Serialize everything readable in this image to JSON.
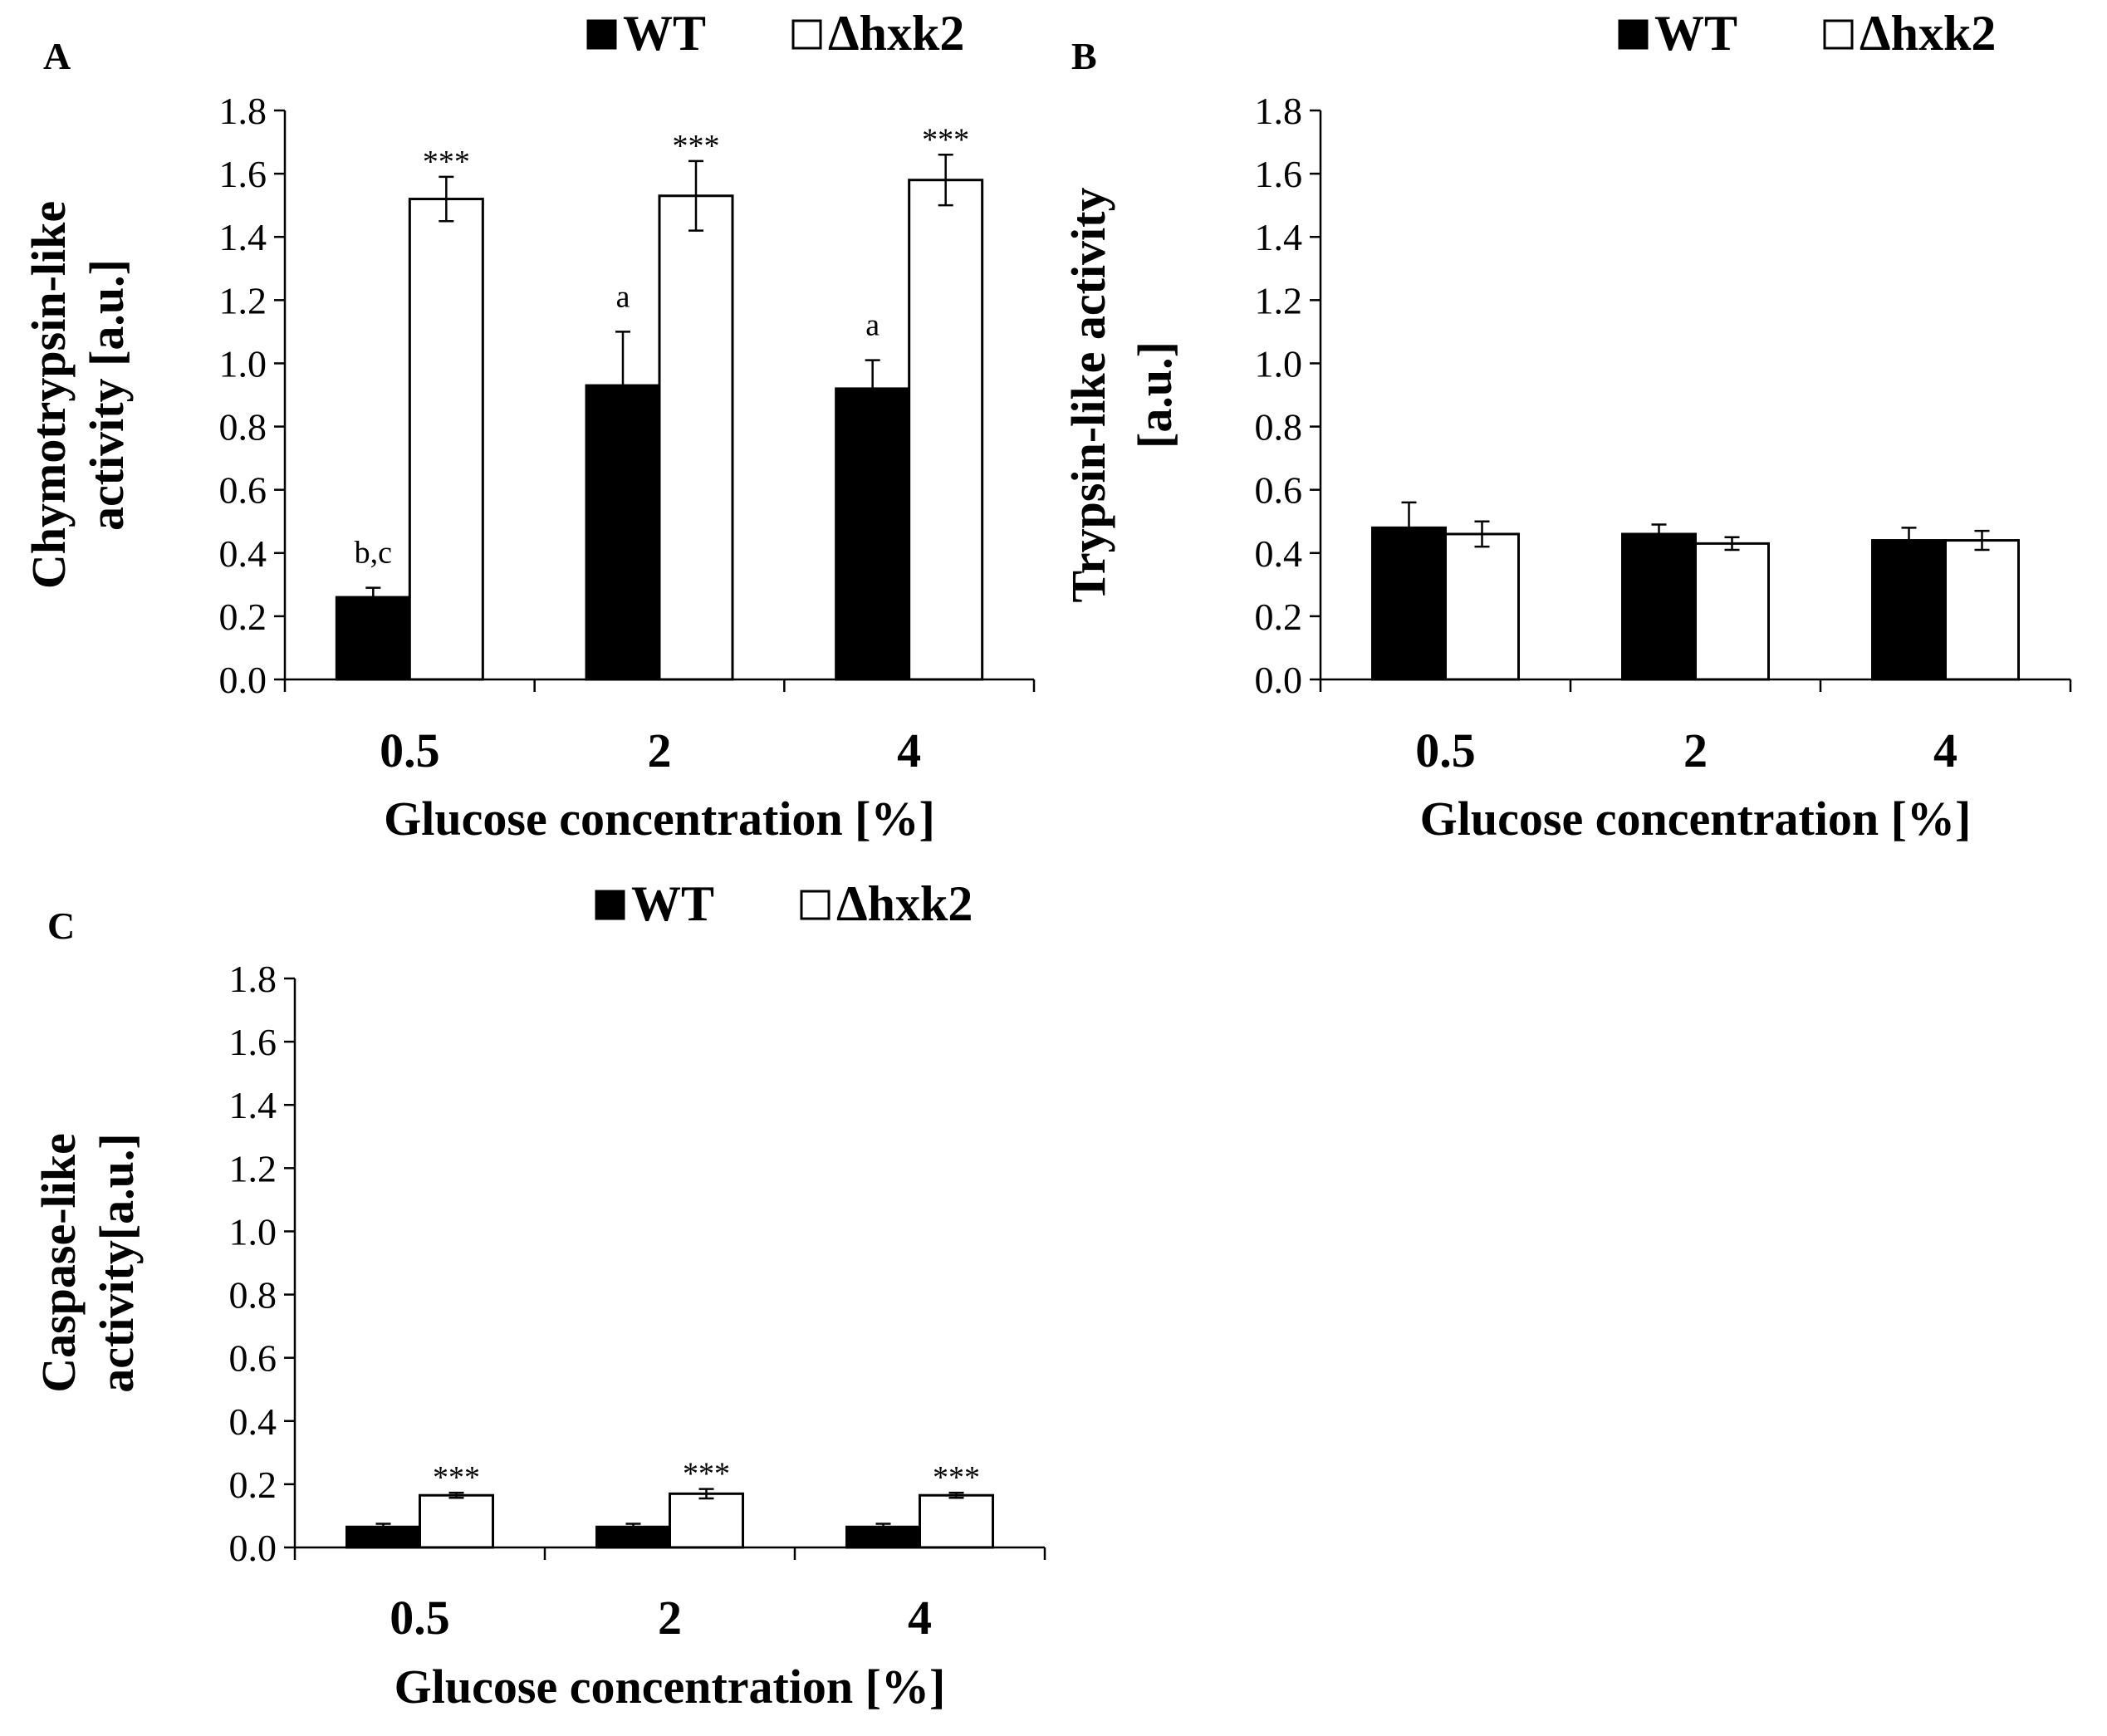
{
  "chart_data": [
    {
      "type": "bar",
      "panel": "A",
      "legend": [
        "WT",
        "Δhxk2"
      ],
      "categories": [
        "0.5",
        "2",
        "4"
      ],
      "xlabel": "Glucose concentration [%]",
      "ylabel_lines": [
        "Chymotrypsin-like",
        "activity [a.u.]"
      ],
      "ylim": [
        0,
        1.8
      ],
      "y_ticks": [
        "0.0",
        "0.2",
        "0.4",
        "0.6",
        "0.8",
        "1.0",
        "1.2",
        "1.4",
        "1.6",
        "1.8"
      ],
      "series": [
        {
          "name": "WT",
          "color": "#000000",
          "values": [
            0.26,
            0.93,
            0.92
          ],
          "errors": [
            0.03,
            0.17,
            0.09
          ],
          "annotations": [
            "b,c",
            "a",
            "a"
          ]
        },
        {
          "name": "Δhxk2",
          "color": "#ffffff",
          "values": [
            1.52,
            1.53,
            1.58
          ],
          "errors": [
            0.07,
            0.11,
            0.08
          ],
          "annotations": [
            "***",
            "***",
            "***"
          ]
        }
      ]
    },
    {
      "type": "bar",
      "panel": "B",
      "legend": [
        "WT",
        "Δhxk2"
      ],
      "categories": [
        "0.5",
        "2",
        "4"
      ],
      "xlabel": "Glucose concentration [%]",
      "ylabel_lines": [
        "Trypsin-like activity",
        "[a.u.]"
      ],
      "ylim": [
        0,
        1.8
      ],
      "y_ticks": [
        "0.0",
        "0.2",
        "0.4",
        "0.6",
        "0.8",
        "1.0",
        "1.2",
        "1.4",
        "1.6",
        "1.8"
      ],
      "series": [
        {
          "name": "WT",
          "color": "#000000",
          "values": [
            0.48,
            0.46,
            0.44
          ],
          "errors": [
            0.08,
            0.03,
            0.04
          ],
          "annotations": [
            "",
            "",
            ""
          ]
        },
        {
          "name": "Δhxk2",
          "color": "#ffffff",
          "values": [
            0.46,
            0.43,
            0.44
          ],
          "errors": [
            0.04,
            0.02,
            0.03
          ],
          "annotations": [
            "",
            "",
            ""
          ]
        }
      ]
    },
    {
      "type": "bar",
      "panel": "C",
      "legend": [
        "WT",
        "Δhxk2"
      ],
      "categories": [
        "0.5",
        "2",
        "4"
      ],
      "xlabel": "Glucose concentration [%]",
      "ylabel_lines": [
        "Caspase-like",
        "activity[a.u.]"
      ],
      "ylim": [
        0,
        1.8
      ],
      "y_ticks": [
        "0.0",
        "0.2",
        "0.4",
        "0.6",
        "0.8",
        "1.0",
        "1.2",
        "1.4",
        "1.6",
        "1.8"
      ],
      "series": [
        {
          "name": "WT",
          "color": "#000000",
          "values": [
            0.065,
            0.065,
            0.065
          ],
          "errors": [
            0.01,
            0.01,
            0.01
          ],
          "annotations": [
            "",
            "",
            ""
          ]
        },
        {
          "name": "Δhxk2",
          "color": "#ffffff",
          "values": [
            0.165,
            0.17,
            0.165
          ],
          "errors": [
            0.008,
            0.015,
            0.008
          ],
          "annotations": [
            "***",
            "***",
            "***"
          ]
        }
      ]
    }
  ]
}
